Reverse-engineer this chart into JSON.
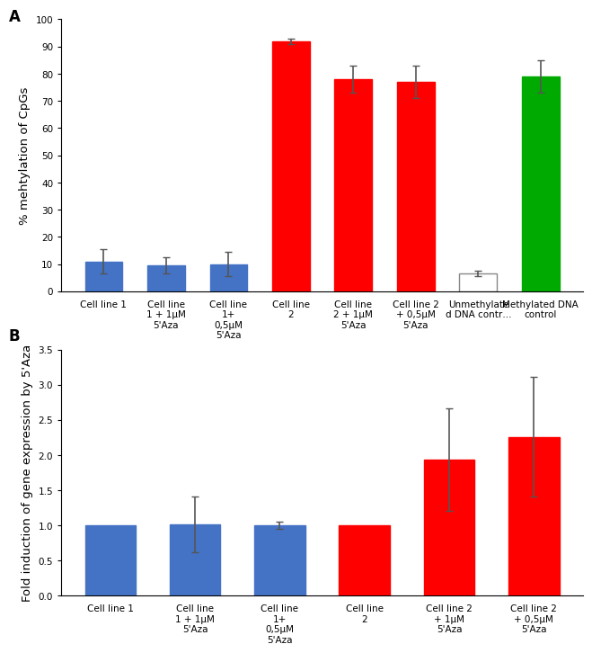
{
  "panel_A": {
    "categories": [
      "Cell line 1",
      "Cell line\n1 + 1μM\n5'Aza",
      "Cell line\n1+\n0,5μM\n5'Aza",
      "Cell line\n2",
      "Cell line\n2 + 1μM\n5'Aza",
      "Cell line 2\n+ 0,5μM\n5'Aza",
      "Unmethylate\nd DNA contr…",
      "Methylated DNA\ncontrol"
    ],
    "values": [
      11.0,
      9.5,
      10.0,
      92.0,
      78.0,
      77.0,
      6.5,
      79.0
    ],
    "errors": [
      4.5,
      3.0,
      4.5,
      1.0,
      5.0,
      6.0,
      1.0,
      6.0
    ],
    "colors": [
      "#4472C4",
      "#4472C4",
      "#4472C4",
      "#FF0000",
      "#FF0000",
      "#FF0000",
      "#FFFFFF",
      "#00AA00"
    ],
    "edge_colors": [
      "#4472C4",
      "#4472C4",
      "#4472C4",
      "#FF0000",
      "#FF0000",
      "#FF0000",
      "#888888",
      "#00AA00"
    ],
    "ylabel": "% mehtylation of CpGs",
    "ylim": [
      0,
      100
    ],
    "yticks": [
      0,
      10,
      20,
      30,
      40,
      50,
      60,
      70,
      80,
      90,
      100
    ],
    "panel_label": "A"
  },
  "panel_B": {
    "categories": [
      "Cell line 1",
      "Cell line\n1 + 1μM\n5'Aza",
      "Cell line\n1+\n0,5μM\n5'Aza",
      "Cell line\n2",
      "Cell line 2\n+ 1μM\n5'Aza",
      "Cell line 2\n+ 0,5μM\n5'Aza"
    ],
    "values": [
      1.0,
      1.01,
      1.0,
      1.0,
      1.93,
      2.26
    ],
    "errors": [
      0.0,
      0.4,
      0.05,
      0.0,
      0.73,
      0.85
    ],
    "colors": [
      "#4472C4",
      "#4472C4",
      "#4472C4",
      "#FF0000",
      "#FF0000",
      "#FF0000"
    ],
    "edge_colors": [
      "#4472C4",
      "#4472C4",
      "#4472C4",
      "#FF0000",
      "#FF0000",
      "#FF0000"
    ],
    "ylabel": "Fold induction of gene expression by 5'Aza",
    "ylim": [
      0,
      3.5
    ],
    "yticks": [
      0,
      0.5,
      1,
      1.5,
      2,
      2.5,
      3,
      3.5
    ],
    "panel_label": "B"
  },
  "bar_width": 0.6,
  "error_capsize": 3,
  "error_color": "#555555",
  "error_linewidth": 1.2,
  "tick_fontsize": 7.5,
  "label_fontsize": 9.5,
  "panel_label_fontsize": 12,
  "bg_color": "#F0F0F0"
}
